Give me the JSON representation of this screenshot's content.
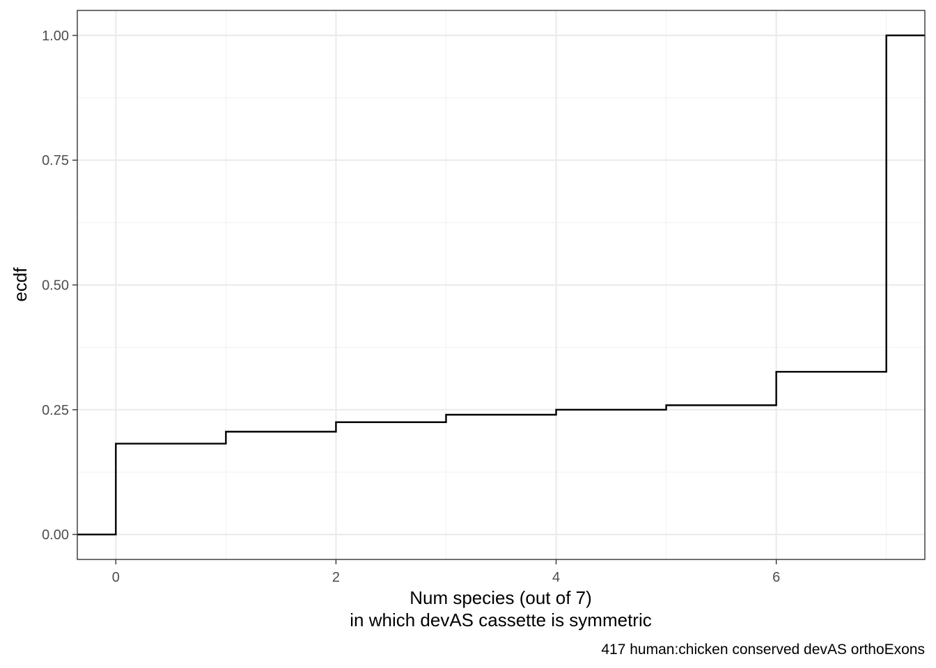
{
  "chart_data": {
    "type": "line",
    "subtype": "step",
    "title": "",
    "xlabel_line1": "Num species (out of 7)",
    "xlabel_line2": "in which devAS cassette is symmetric",
    "ylabel": "ecdf",
    "caption": "417 human:chicken conserved devAS orthoExons",
    "xlim": [
      -0.35,
      7.35
    ],
    "ylim": [
      -0.05,
      1.05
    ],
    "x_ticks": [
      0,
      2,
      4,
      6
    ],
    "x_tick_labels": [
      "0",
      "2",
      "4",
      "6"
    ],
    "y_ticks": [
      0,
      0.25,
      0.5,
      0.75,
      1.0
    ],
    "y_tick_labels": [
      "0.00",
      "0.25",
      "0.50",
      "0.75",
      "1.00"
    ],
    "grid": true,
    "legend": "none",
    "line_color": "#000000",
    "series": [
      {
        "x": [
          0,
          1,
          2,
          3,
          4,
          5,
          6,
          7
        ],
        "y": [
          0.182,
          0.206,
          0.225,
          0.24,
          0.25,
          0.259,
          0.326,
          1.0
        ]
      }
    ]
  }
}
